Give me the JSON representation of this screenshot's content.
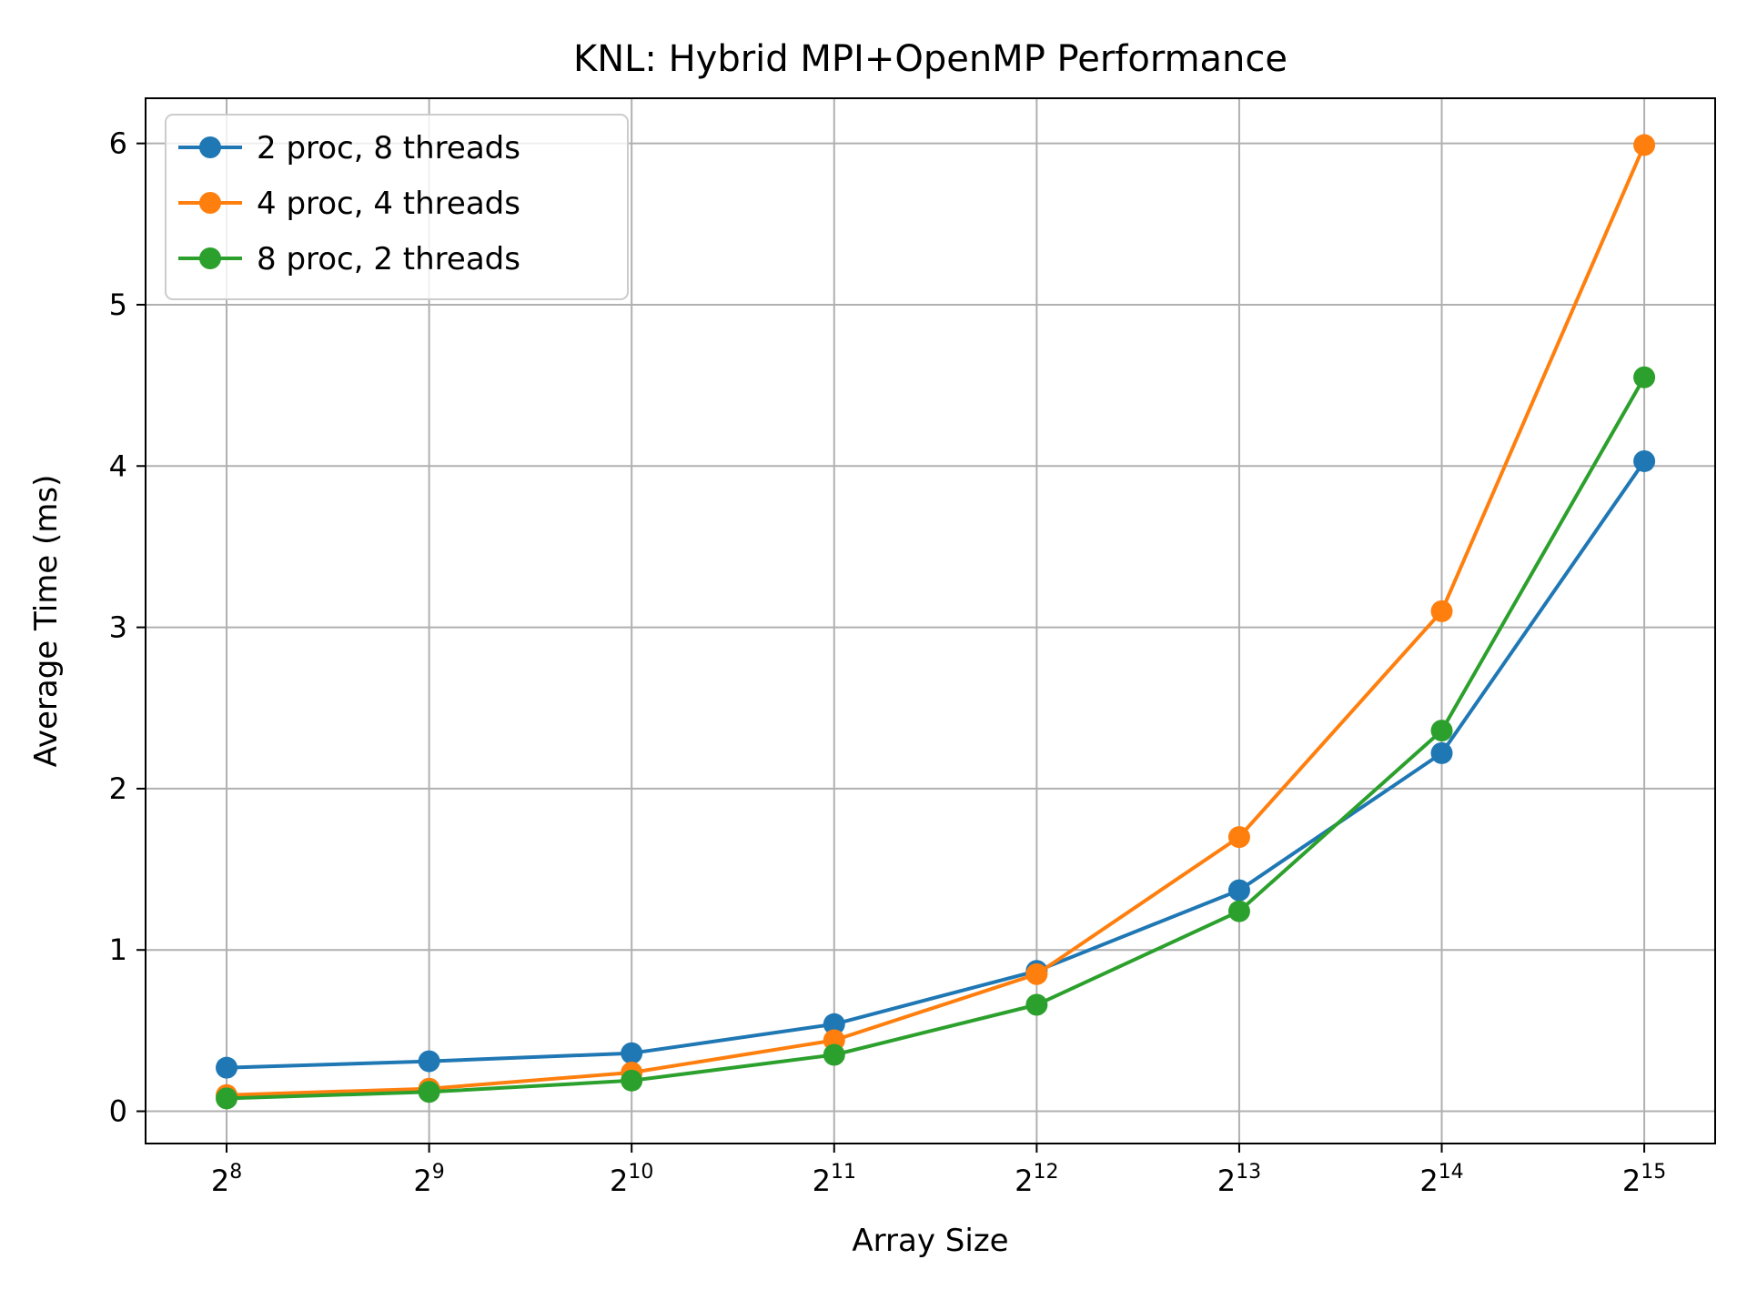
{
  "chart_data": {
    "type": "line",
    "title": "KNL: Hybrid MPI+OpenMP Performance",
    "xlabel": "Array Size",
    "ylabel": "Average Time (ms)",
    "x_scale": "log2",
    "x": [
      256,
      512,
      1024,
      2048,
      4096,
      8192,
      16384,
      32768
    ],
    "x_tick_labels": [
      {
        "base": "2",
        "exp": "8"
      },
      {
        "base": "2",
        "exp": "9"
      },
      {
        "base": "2",
        "exp": "10"
      },
      {
        "base": "2",
        "exp": "11"
      },
      {
        "base": "2",
        "exp": "12"
      },
      {
        "base": "2",
        "exp": "13"
      },
      {
        "base": "2",
        "exp": "14"
      },
      {
        "base": "2",
        "exp": "15"
      }
    ],
    "ylim": [
      -0.2,
      6.28
    ],
    "y_ticks": [
      "0",
      "1",
      "2",
      "3",
      "4",
      "5",
      "6"
    ],
    "grid": true,
    "legend_position": "top-left",
    "series": [
      {
        "name": "2 proc, 8 threads",
        "color": "#1f77b4",
        "values": [
          0.27,
          0.31,
          0.36,
          0.54,
          0.87,
          1.37,
          2.22,
          4.03
        ]
      },
      {
        "name": "4 proc, 4 threads",
        "color": "#ff7f0e",
        "values": [
          0.1,
          0.14,
          0.24,
          0.44,
          0.85,
          1.7,
          3.1,
          5.99
        ]
      },
      {
        "name": "8 proc, 2 threads",
        "color": "#2ca02c",
        "values": [
          0.08,
          0.12,
          0.19,
          0.35,
          0.66,
          1.24,
          2.36,
          4.55
        ]
      }
    ]
  }
}
